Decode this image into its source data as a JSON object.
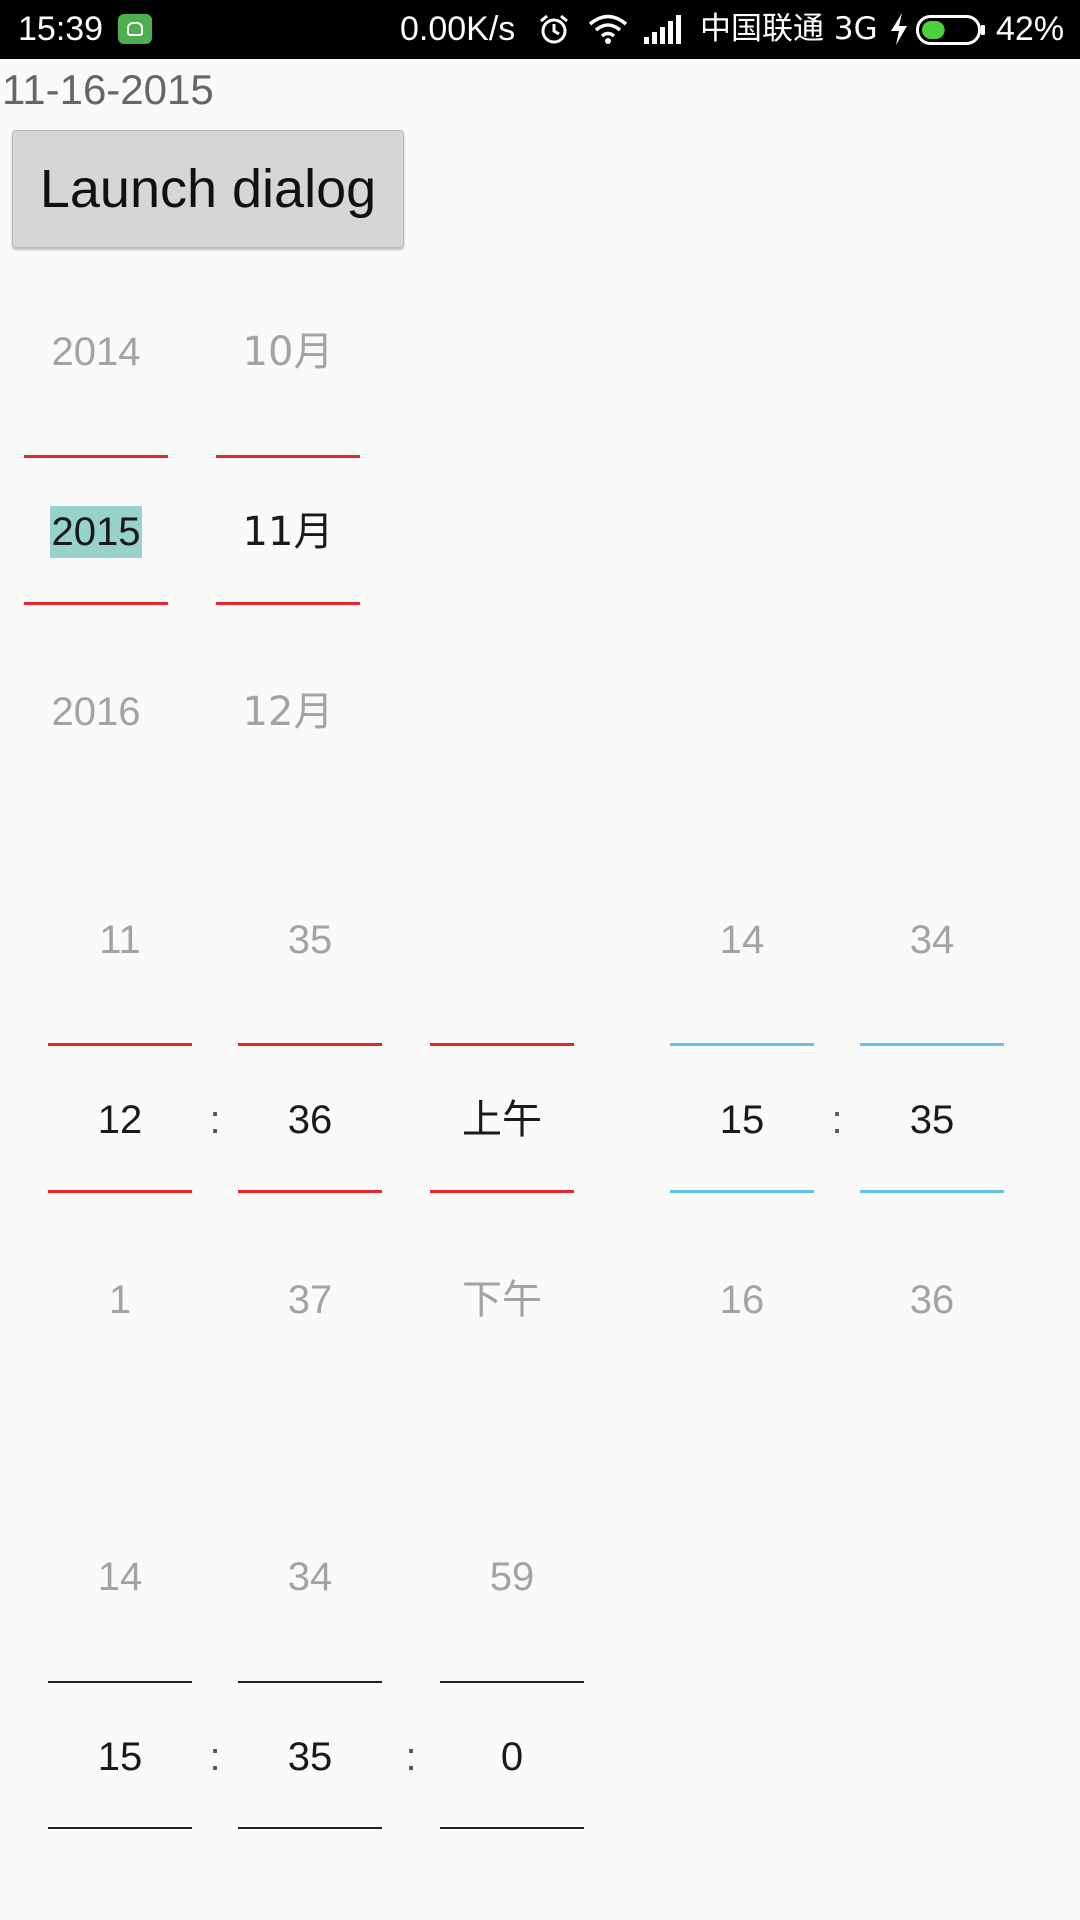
{
  "status_bar": {
    "time": "15:39",
    "net_speed": "0.00K/s",
    "carrier": "中国联通 3G",
    "battery_pct": "42%",
    "battery_level": 0.42,
    "icons": [
      "app-notification-icon",
      "alarm-icon",
      "wifi-icon",
      "signal-icon",
      "charging-icon",
      "battery-icon"
    ]
  },
  "date_label": "11-16-2015",
  "launch_button": "Launch dialog",
  "date_picker": {
    "year": {
      "prev": "2014",
      "current": "2015",
      "next": "2016"
    },
    "month": {
      "prev": "10月",
      "current": "11月",
      "next": "12月"
    },
    "divider_color": "#e8252b",
    "highlight_color": "#97d3cb"
  },
  "time_picker_12h": {
    "hour": {
      "prev": "11",
      "current": "12",
      "next": "1"
    },
    "minute": {
      "prev": "35",
      "current": "36",
      "next": "37"
    },
    "ampm": {
      "prev": "",
      "current": "上午",
      "next": "下午"
    },
    "separator": ":",
    "divider_color": "#e8252b"
  },
  "time_picker_24h": {
    "hour": {
      "prev": "14",
      "current": "15",
      "next": "16"
    },
    "minute": {
      "prev": "34",
      "current": "35",
      "next": "36"
    },
    "separator": ":",
    "divider_color": "#64c2e6"
  },
  "time_picker_seconds": {
    "hour": {
      "prev": "14",
      "current": "15"
    },
    "minute": {
      "prev": "34",
      "current": "35"
    },
    "second": {
      "prev": "59",
      "current": "0"
    },
    "separator": ":",
    "divider_color": "#222222"
  }
}
